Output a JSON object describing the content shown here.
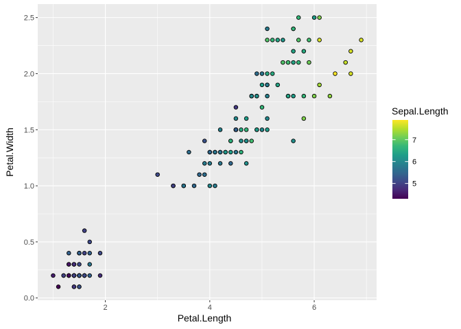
{
  "chart_data": {
    "type": "scatter",
    "title": "",
    "xlabel": "Petal.Length",
    "ylabel": "Petal.Width",
    "xlim": [
      0.705,
      7.195
    ],
    "ylim": [
      -0.02,
      2.62
    ],
    "x_ticks": [
      2,
      4,
      6
    ],
    "x_tick_labels": [
      "2",
      "4",
      "6"
    ],
    "y_ticks": [
      0.0,
      0.5,
      1.0,
      1.5,
      2.0,
      2.5
    ],
    "y_tick_labels": [
      "0.0",
      "0.5",
      "1.0",
      "1.5",
      "2.0",
      "2.5"
    ],
    "grid": true,
    "panel_background": "#ebebeb",
    "point_stroke": "#000000",
    "color_by": "Sepal.Length",
    "color_scale": {
      "name": "viridis",
      "limits": [
        4.3,
        7.9
      ],
      "stops": [
        "#440154",
        "#482878",
        "#3e4a89",
        "#31688e",
        "#26828e",
        "#1f9e89",
        "#35b779",
        "#6ece58",
        "#b5de2b",
        "#fde725"
      ]
    },
    "legend": {
      "title": "Sepal.Length",
      "position": "right",
      "breaks": [
        5,
        6,
        7
      ],
      "break_labels": [
        "5",
        "6",
        "7"
      ]
    },
    "points": [
      {
        "x": 1.4,
        "y": 0.2,
        "c": 5.1
      },
      {
        "x": 1.4,
        "y": 0.2,
        "c": 4.9
      },
      {
        "x": 1.3,
        "y": 0.2,
        "c": 4.7
      },
      {
        "x": 1.5,
        "y": 0.2,
        "c": 4.6
      },
      {
        "x": 1.4,
        "y": 0.2,
        "c": 5.0
      },
      {
        "x": 1.7,
        "y": 0.4,
        "c": 5.4
      },
      {
        "x": 1.4,
        "y": 0.3,
        "c": 4.6
      },
      {
        "x": 1.5,
        "y": 0.2,
        "c": 5.0
      },
      {
        "x": 1.4,
        "y": 0.2,
        "c": 4.4
      },
      {
        "x": 1.5,
        "y": 0.1,
        "c": 4.9
      },
      {
        "x": 1.5,
        "y": 0.2,
        "c": 5.4
      },
      {
        "x": 1.6,
        "y": 0.2,
        "c": 4.8
      },
      {
        "x": 1.4,
        "y": 0.1,
        "c": 4.8
      },
      {
        "x": 1.1,
        "y": 0.1,
        "c": 4.3
      },
      {
        "x": 1.2,
        "y": 0.2,
        "c": 5.8
      },
      {
        "x": 1.5,
        "y": 0.4,
        "c": 5.7
      },
      {
        "x": 1.3,
        "y": 0.4,
        "c": 5.4
      },
      {
        "x": 1.4,
        "y": 0.3,
        "c": 5.1
      },
      {
        "x": 1.7,
        "y": 0.3,
        "c": 5.7
      },
      {
        "x": 1.5,
        "y": 0.3,
        "c": 5.1
      },
      {
        "x": 1.7,
        "y": 0.2,
        "c": 5.4
      },
      {
        "x": 1.5,
        "y": 0.4,
        "c": 5.1
      },
      {
        "x": 1.0,
        "y": 0.2,
        "c": 4.6
      },
      {
        "x": 1.7,
        "y": 0.5,
        "c": 5.1
      },
      {
        "x": 1.9,
        "y": 0.2,
        "c": 4.8
      },
      {
        "x": 1.6,
        "y": 0.2,
        "c": 5.0
      },
      {
        "x": 1.6,
        "y": 0.4,
        "c": 5.0
      },
      {
        "x": 1.5,
        "y": 0.2,
        "c": 5.2
      },
      {
        "x": 1.4,
        "y": 0.2,
        "c": 5.2
      },
      {
        "x": 1.6,
        "y": 0.2,
        "c": 4.7
      },
      {
        "x": 1.6,
        "y": 0.2,
        "c": 4.8
      },
      {
        "x": 1.5,
        "y": 0.4,
        "c": 5.4
      },
      {
        "x": 1.5,
        "y": 0.1,
        "c": 5.2
      },
      {
        "x": 1.4,
        "y": 0.2,
        "c": 5.5
      },
      {
        "x": 1.5,
        "y": 0.2,
        "c": 4.9
      },
      {
        "x": 1.2,
        "y": 0.2,
        "c": 5.0
      },
      {
        "x": 1.3,
        "y": 0.2,
        "c": 5.5
      },
      {
        "x": 1.4,
        "y": 0.1,
        "c": 4.9
      },
      {
        "x": 1.3,
        "y": 0.2,
        "c": 4.4
      },
      {
        "x": 1.5,
        "y": 0.2,
        "c": 5.1
      },
      {
        "x": 1.3,
        "y": 0.3,
        "c": 5.0
      },
      {
        "x": 1.3,
        "y": 0.3,
        "c": 4.5
      },
      {
        "x": 1.3,
        "y": 0.2,
        "c": 4.4
      },
      {
        "x": 1.6,
        "y": 0.6,
        "c": 5.0
      },
      {
        "x": 1.9,
        "y": 0.4,
        "c": 5.1
      },
      {
        "x": 1.4,
        "y": 0.3,
        "c": 4.8
      },
      {
        "x": 1.6,
        "y": 0.2,
        "c": 5.1
      },
      {
        "x": 1.4,
        "y": 0.2,
        "c": 4.6
      },
      {
        "x": 1.5,
        "y": 0.2,
        "c": 5.3
      },
      {
        "x": 1.4,
        "y": 0.2,
        "c": 5.0
      },
      {
        "x": 4.7,
        "y": 1.4,
        "c": 7.0
      },
      {
        "x": 4.5,
        "y": 1.5,
        "c": 6.4
      },
      {
        "x": 4.9,
        "y": 1.5,
        "c": 6.9
      },
      {
        "x": 4.0,
        "y": 1.3,
        "c": 5.5
      },
      {
        "x": 4.6,
        "y": 1.5,
        "c": 6.5
      },
      {
        "x": 4.5,
        "y": 1.3,
        "c": 5.7
      },
      {
        "x": 4.7,
        "y": 1.6,
        "c": 6.3
      },
      {
        "x": 3.3,
        "y": 1.0,
        "c": 4.9
      },
      {
        "x": 4.6,
        "y": 1.3,
        "c": 6.6
      },
      {
        "x": 3.9,
        "y": 1.4,
        "c": 5.2
      },
      {
        "x": 3.5,
        "y": 1.0,
        "c": 5.0
      },
      {
        "x": 4.2,
        "y": 1.5,
        "c": 5.9
      },
      {
        "x": 4.0,
        "y": 1.0,
        "c": 6.0
      },
      {
        "x": 4.7,
        "y": 1.4,
        "c": 6.1
      },
      {
        "x": 3.6,
        "y": 1.3,
        "c": 5.6
      },
      {
        "x": 4.4,
        "y": 1.4,
        "c": 6.7
      },
      {
        "x": 4.5,
        "y": 1.5,
        "c": 5.6
      },
      {
        "x": 4.1,
        "y": 1.0,
        "c": 5.8
      },
      {
        "x": 4.5,
        "y": 1.5,
        "c": 6.2
      },
      {
        "x": 3.9,
        "y": 1.1,
        "c": 5.6
      },
      {
        "x": 4.8,
        "y": 1.8,
        "c": 5.9
      },
      {
        "x": 4.0,
        "y": 1.3,
        "c": 6.1
      },
      {
        "x": 4.9,
        "y": 1.5,
        "c": 6.3
      },
      {
        "x": 4.7,
        "y": 1.2,
        "c": 6.1
      },
      {
        "x": 4.3,
        "y": 1.3,
        "c": 6.4
      },
      {
        "x": 4.4,
        "y": 1.4,
        "c": 6.6
      },
      {
        "x": 4.8,
        "y": 1.4,
        "c": 6.8
      },
      {
        "x": 5.0,
        "y": 1.7,
        "c": 6.7
      },
      {
        "x": 4.5,
        "y": 1.5,
        "c": 6.0
      },
      {
        "x": 3.5,
        "y": 1.0,
        "c": 5.7
      },
      {
        "x": 3.8,
        "y": 1.1,
        "c": 5.5
      },
      {
        "x": 3.7,
        "y": 1.0,
        "c": 5.5
      },
      {
        "x": 3.9,
        "y": 1.2,
        "c": 5.8
      },
      {
        "x": 5.1,
        "y": 1.6,
        "c": 6.0
      },
      {
        "x": 4.5,
        "y": 1.5,
        "c": 5.4
      },
      {
        "x": 4.5,
        "y": 1.6,
        "c": 6.0
      },
      {
        "x": 4.7,
        "y": 1.5,
        "c": 6.7
      },
      {
        "x": 4.4,
        "y": 1.3,
        "c": 6.3
      },
      {
        "x": 4.1,
        "y": 1.3,
        "c": 5.6
      },
      {
        "x": 4.0,
        "y": 1.3,
        "c": 5.5
      },
      {
        "x": 4.4,
        "y": 1.2,
        "c": 5.5
      },
      {
        "x": 4.6,
        "y": 1.4,
        "c": 6.1
      },
      {
        "x": 4.0,
        "y": 1.2,
        "c": 5.8
      },
      {
        "x": 3.3,
        "y": 1.0,
        "c": 5.0
      },
      {
        "x": 4.2,
        "y": 1.3,
        "c": 5.6
      },
      {
        "x": 4.2,
        "y": 1.2,
        "c": 5.7
      },
      {
        "x": 4.2,
        "y": 1.3,
        "c": 5.7
      },
      {
        "x": 4.3,
        "y": 1.3,
        "c": 6.2
      },
      {
        "x": 3.0,
        "y": 1.1,
        "c": 5.1
      },
      {
        "x": 4.1,
        "y": 1.3,
        "c": 5.7
      },
      {
        "x": 6.0,
        "y": 2.5,
        "c": 6.3
      },
      {
        "x": 5.1,
        "y": 1.9,
        "c": 5.8
      },
      {
        "x": 5.9,
        "y": 2.1,
        "c": 7.1
      },
      {
        "x": 5.6,
        "y": 1.8,
        "c": 6.3
      },
      {
        "x": 5.8,
        "y": 2.2,
        "c": 6.5
      },
      {
        "x": 6.6,
        "y": 2.1,
        "c": 7.6
      },
      {
        "x": 4.5,
        "y": 1.7,
        "c": 4.9
      },
      {
        "x": 6.3,
        "y": 1.8,
        "c": 7.3
      },
      {
        "x": 5.8,
        "y": 1.8,
        "c": 6.7
      },
      {
        "x": 6.1,
        "y": 2.5,
        "c": 7.2
      },
      {
        "x": 5.1,
        "y": 2.0,
        "c": 6.5
      },
      {
        "x": 5.3,
        "y": 1.9,
        "c": 6.4
      },
      {
        "x": 5.5,
        "y": 2.1,
        "c": 6.8
      },
      {
        "x": 5.0,
        "y": 2.0,
        "c": 5.7
      },
      {
        "x": 5.1,
        "y": 2.4,
        "c": 5.8
      },
      {
        "x": 5.3,
        "y": 2.3,
        "c": 6.4
      },
      {
        "x": 5.5,
        "y": 1.8,
        "c": 6.5
      },
      {
        "x": 6.7,
        "y": 2.2,
        "c": 7.7
      },
      {
        "x": 6.9,
        "y": 2.3,
        "c": 7.7
      },
      {
        "x": 5.0,
        "y": 1.5,
        "c": 6.0
      },
      {
        "x": 5.7,
        "y": 2.3,
        "c": 6.9
      },
      {
        "x": 4.9,
        "y": 2.0,
        "c": 5.6
      },
      {
        "x": 6.7,
        "y": 2.0,
        "c": 7.7
      },
      {
        "x": 4.9,
        "y": 1.8,
        "c": 6.3
      },
      {
        "x": 5.7,
        "y": 2.1,
        "c": 6.7
      },
      {
        "x": 6.0,
        "y": 1.8,
        "c": 7.2
      },
      {
        "x": 4.8,
        "y": 1.8,
        "c": 6.2
      },
      {
        "x": 4.9,
        "y": 1.8,
        "c": 6.1
      },
      {
        "x": 5.6,
        "y": 2.1,
        "c": 6.4
      },
      {
        "x": 5.8,
        "y": 1.6,
        "c": 7.2
      },
      {
        "x": 6.1,
        "y": 1.9,
        "c": 7.4
      },
      {
        "x": 6.4,
        "y": 2.0,
        "c": 7.9
      },
      {
        "x": 5.6,
        "y": 2.2,
        "c": 6.4
      },
      {
        "x": 5.1,
        "y": 1.5,
        "c": 6.3
      },
      {
        "x": 5.6,
        "y": 1.4,
        "c": 6.1
      },
      {
        "x": 6.1,
        "y": 2.3,
        "c": 7.7
      },
      {
        "x": 5.6,
        "y": 2.4,
        "c": 6.3
      },
      {
        "x": 5.5,
        "y": 1.8,
        "c": 6.4
      },
      {
        "x": 4.8,
        "y": 1.8,
        "c": 6.0
      },
      {
        "x": 5.4,
        "y": 2.1,
        "c": 6.9
      },
      {
        "x": 5.6,
        "y": 2.4,
        "c": 6.7
      },
      {
        "x": 5.1,
        "y": 2.3,
        "c": 6.9
      },
      {
        "x": 5.1,
        "y": 1.9,
        "c": 5.8
      },
      {
        "x": 5.9,
        "y": 2.3,
        "c": 6.8
      },
      {
        "x": 5.7,
        "y": 2.5,
        "c": 6.7
      },
      {
        "x": 5.2,
        "y": 2.3,
        "c": 6.7
      },
      {
        "x": 5.0,
        "y": 1.9,
        "c": 6.3
      },
      {
        "x": 5.2,
        "y": 2.0,
        "c": 6.5
      },
      {
        "x": 5.4,
        "y": 2.3,
        "c": 6.2
      },
      {
        "x": 5.1,
        "y": 1.8,
        "c": 5.9
      }
    ]
  }
}
